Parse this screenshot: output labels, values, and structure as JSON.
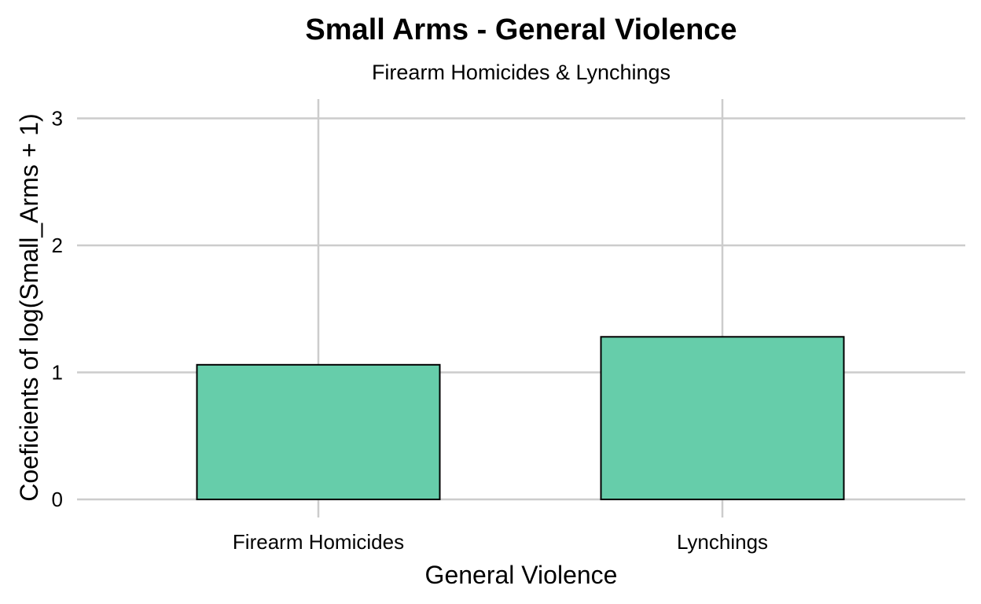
{
  "chart_data": {
    "type": "bar",
    "title": "Small Arms - General Violence",
    "subtitle": "Firearm Homicides & Lynchings",
    "xlabel": "General Violence",
    "ylabel": "Coeficients of log(Small_Arms + 1)",
    "categories": [
      "Firearm Homicides",
      "Lynchings"
    ],
    "values": [
      1.06,
      1.28
    ],
    "ylim": [
      0,
      3.15
    ],
    "yticks": [
      0,
      1,
      2,
      3
    ],
    "grid": true,
    "legend": "none",
    "colors": {
      "bar_fill": "#66cdaa",
      "bar_stroke": "#000000",
      "grid": "#cccccc"
    }
  }
}
